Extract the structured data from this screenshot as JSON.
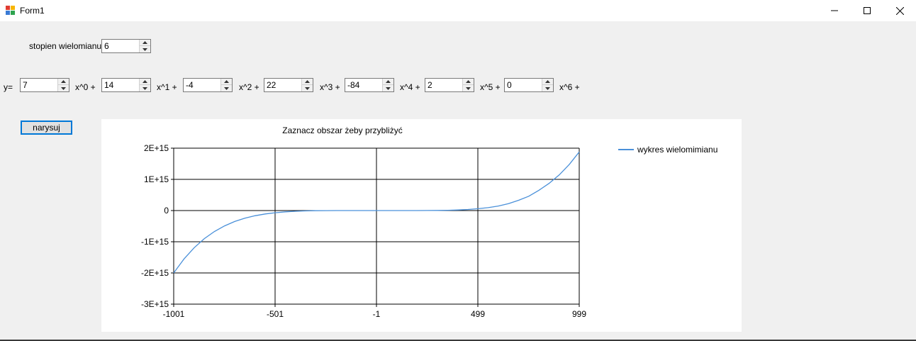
{
  "window": {
    "title": "Form1",
    "icon": "winforms-app-icon",
    "controls": [
      "minimize-icon",
      "maximize-icon",
      "close-icon"
    ]
  },
  "degree": {
    "label": "stopien wielomianu",
    "value": "6"
  },
  "equation": {
    "prefix": "y=",
    "terms": [
      {
        "value": "7",
        "label": "x^0 +"
      },
      {
        "value": "14",
        "label": "x^1 +"
      },
      {
        "value": "-4",
        "label": "x^2 +"
      },
      {
        "value": "22",
        "label": "x^3 +"
      },
      {
        "value": "-84",
        "label": "x^4 +"
      },
      {
        "value": "2",
        "label": "x^5 +"
      },
      {
        "value": "0",
        "label": "x^6 +"
      }
    ]
  },
  "draw_button": {
    "label": "narysuj"
  },
  "chart_data": {
    "type": "line",
    "title": "Zaznacz obszar żeby przybliżyć",
    "xlabel": "",
    "ylabel": "",
    "xlim": [
      -1001,
      999
    ],
    "ylim": [
      -3000000000000000.0,
      2000000000000000.0
    ],
    "x_ticks": [
      "-1001",
      "-501",
      "-1",
      "499",
      "999"
    ],
    "y_ticks": [
      "2E+15",
      "1E+15",
      "0",
      "-1E+15",
      "-2E+15",
      "-3E+15"
    ],
    "grid": true,
    "legend_position": "top-right",
    "series": [
      {
        "name": "wykres wielomimianu",
        "color": "#4a90d9",
        "x": [
          -1001,
          -950,
          -900,
          -850,
          -800,
          -750,
          -700,
          -650,
          -600,
          -550,
          -501,
          -450,
          -400,
          -350,
          -300,
          -250,
          -200,
          -150,
          -100,
          -50,
          -1,
          50,
          100,
          150,
          200,
          250,
          300,
          350,
          400,
          450,
          499,
          550,
          600,
          650,
          700,
          750,
          800,
          850,
          900,
          950,
          999
        ],
        "y": [
          -2000000000000000.0,
          -1550000000000000.0,
          -1190000000000000.0,
          -900000000000000.0,
          -670000000000000.0,
          -490000000000000.0,
          -350000000000000.0,
          -245000000000000.0,
          -165000000000000.0,
          -110000000000000.0,
          -70000000000000.0,
          -40000000000000.0,
          -23000000000000.0,
          -12000000000000.0,
          -5500000000000.0,
          -2200000000000.0,
          -700000000000.0,
          -160000000000.0,
          -22000000000.0,
          -700000000.0,
          7,
          200000000.0,
          18000000000.0,
          140000000000.0,
          600000000000.0,
          1900000000000.0,
          4600000000000.0,
          9800000000000.0,
          19000000000000.0,
          34000000000000.0,
          58000000000000.0,
          93000000000000.0,
          145000000000000.0,
          220000000000000.0,
          330000000000000.0,
          460000000000000.0,
          650000000000000.0,
          870000000000000.0,
          1140000000000000.0,
          1480000000000000.0,
          1880000000000000.0
        ]
      }
    ]
  }
}
